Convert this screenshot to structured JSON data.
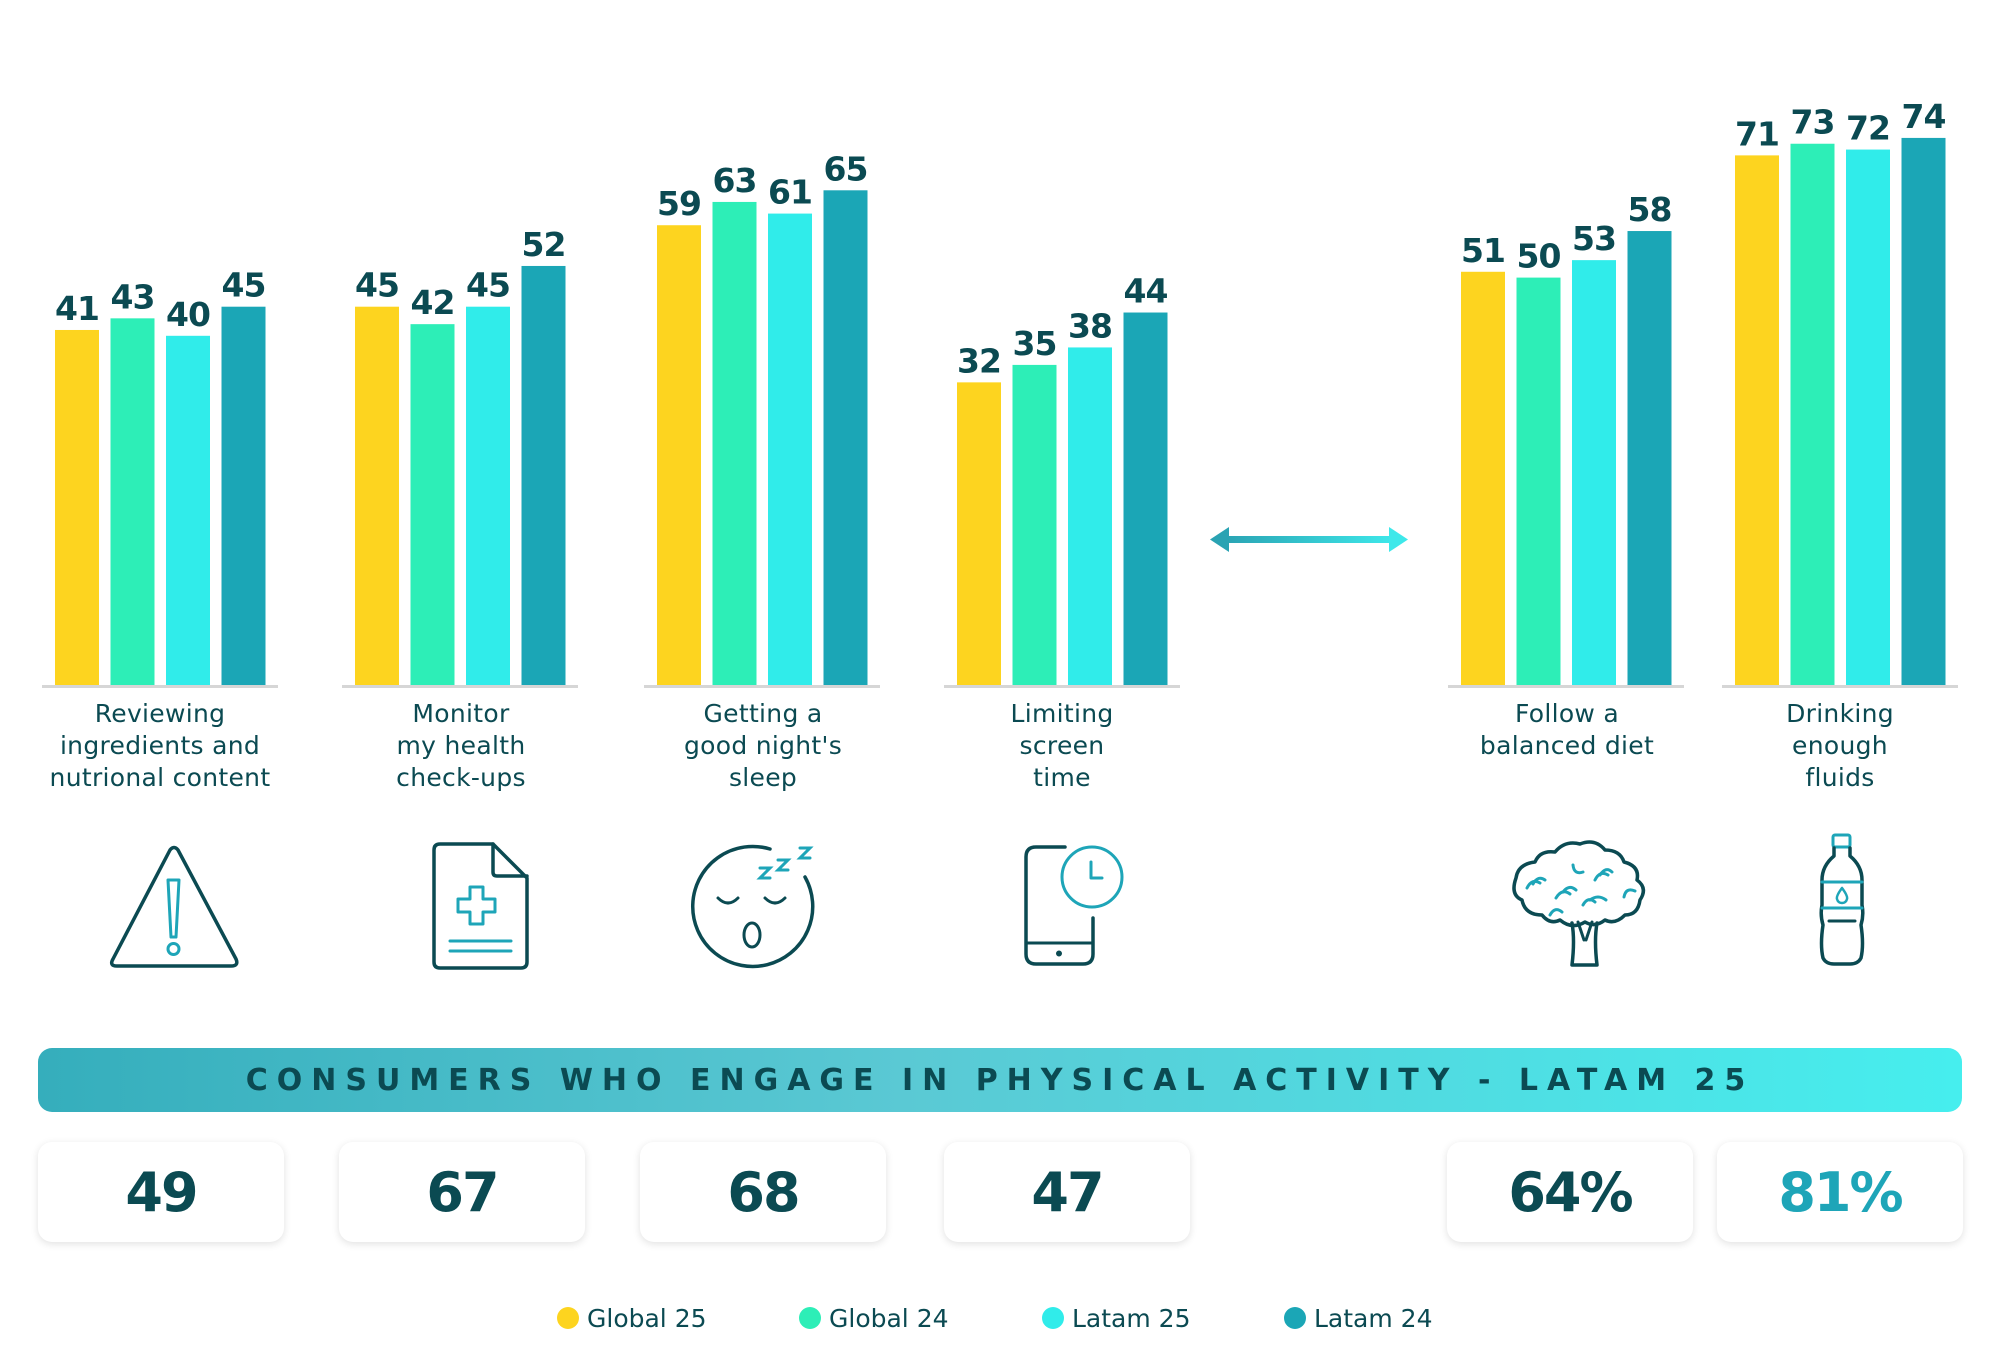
{
  "colors": {
    "global25": "#fdd41f",
    "global24": "#2deeb7",
    "latam25": "#30ecea",
    "latam24": "#1ba6b6",
    "text_dark": "#0b4a52",
    "icon_accent": "#1ea5b8",
    "axis": "#d6d6d6"
  },
  "chart_data": {
    "type": "bar",
    "title": "",
    "xlabel": "",
    "ylabel": "",
    "ylim": [
      -20,
      80
    ],
    "grid": false,
    "legend_position": "bottom",
    "categories": [
      "Reviewing\ningredients and\nnutrional content",
      "Monitor\nmy health\ncheck-ups",
      "Getting a\ngood night's\nsleep",
      "Limiting\nscreen\ntime",
      "Follow a\nbalanced diet",
      "Drinking\nenough\nfluids"
    ],
    "series": [
      {
        "name": "Global 25",
        "color_key": "global25",
        "values": [
          41,
          45,
          59,
          32,
          51,
          71
        ]
      },
      {
        "name": "Global 24",
        "color_key": "global24",
        "values": [
          43,
          42,
          63,
          35,
          50,
          73
        ]
      },
      {
        "name": "Latam 25",
        "color_key": "latam25",
        "values": [
          40,
          45,
          61,
          38,
          53,
          72
        ]
      },
      {
        "name": "Latam 24",
        "color_key": "latam24",
        "values": [
          45,
          52,
          65,
          44,
          58,
          74
        ]
      }
    ]
  },
  "icons": [
    "warning-triangle-icon",
    "medical-document-icon",
    "sleeping-face-icon",
    "phone-clock-icon",
    "broccoli-icon",
    "water-bottle-icon"
  ],
  "connector": "double-arrow-icon",
  "banner": {
    "text": "CONSUMERS WHO ENGAGE IN PHYSICAL ACTIVITY - LATAM 25"
  },
  "stats": [
    {
      "value": "49",
      "accent": false
    },
    {
      "value": "67",
      "accent": false
    },
    {
      "value": "68",
      "accent": false
    },
    {
      "value": "47",
      "accent": false
    },
    {
      "value": "64%",
      "accent": false
    },
    {
      "value": "81%",
      "accent": true
    }
  ],
  "legend": [
    {
      "label": "Global 25",
      "color_key": "global25"
    },
    {
      "label": "Global 24",
      "color_key": "global24"
    },
    {
      "label": "Latam 25",
      "color_key": "latam25"
    },
    {
      "label": "Latam 24",
      "color_key": "latam24"
    }
  ]
}
